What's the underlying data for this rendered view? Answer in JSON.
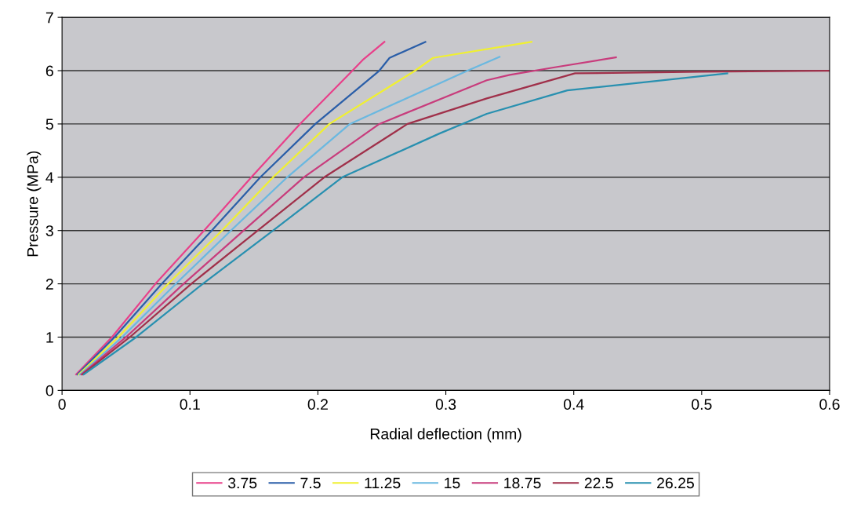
{
  "chart_data": {
    "type": "line",
    "xlabel": "Radial deflection (mm)",
    "ylabel": "Pressure (MPa)",
    "xlim": [
      0,
      0.6
    ],
    "xticks": [
      0,
      0.1,
      0.2,
      0.3,
      0.4,
      0.5,
      0.6
    ],
    "ylim": [
      0,
      7
    ],
    "yticks": [
      0,
      1,
      2,
      3,
      4,
      5,
      6,
      7
    ],
    "grid": "y",
    "legend": "bottom",
    "marker": "none",
    "line_style": "solid",
    "series": [
      {
        "name": "3.75",
        "color": "#e8408a",
        "x": [
          0.011,
          0.039,
          0.073,
          0.111,
          0.148,
          0.186,
          0.227,
          0.235,
          0.252
        ],
        "values": [
          0.3,
          1,
          2,
          3,
          4,
          5,
          6,
          6.2,
          6.54
        ]
      },
      {
        "name": "7.5",
        "color": "#2a5ea8",
        "x": [
          0.012,
          0.041,
          0.078,
          0.117,
          0.155,
          0.198,
          0.248,
          0.256,
          0.284
        ],
        "values": [
          0.3,
          1,
          2,
          3,
          4,
          5,
          6,
          6.24,
          6.54
        ]
      },
      {
        "name": "11.25",
        "color": "#f0f030",
        "x": [
          0.013,
          0.044,
          0.083,
          0.125,
          0.165,
          0.209,
          0.276,
          0.29,
          0.367
        ],
        "values": [
          0.3,
          1,
          2,
          3,
          4,
          5,
          6,
          6.24,
          6.54
        ]
      },
      {
        "name": "15",
        "color": "#6ab8e0",
        "x": [
          0.014,
          0.047,
          0.089,
          0.132,
          0.176,
          0.225,
          0.317,
          0.342
        ],
        "values": [
          0.3,
          1,
          2,
          3,
          4,
          5,
          6,
          6.26
        ]
      },
      {
        "name": "18.75",
        "color": "#c83c7c",
        "x": [
          0.015,
          0.05,
          0.095,
          0.142,
          0.189,
          0.248,
          0.332,
          0.35,
          0.387,
          0.433
        ],
        "values": [
          0.3,
          1,
          2,
          3,
          4,
          5,
          5.82,
          5.92,
          6.07,
          6.25
        ]
      },
      {
        "name": "22.5",
        "color": "#a0304a",
        "x": [
          0.016,
          0.053,
          0.101,
          0.153,
          0.205,
          0.27,
          0.332,
          0.401,
          0.5,
          0.6
        ],
        "values": [
          0.3,
          1,
          2,
          3,
          4,
          5,
          5.48,
          5.95,
          5.98,
          6.0
        ]
      },
      {
        "name": "26.25",
        "color": "#2890b0",
        "x": [
          0.017,
          0.058,
          0.11,
          0.165,
          0.219,
          0.295,
          0.332,
          0.395,
          0.52
        ],
        "values": [
          0.3,
          1,
          2,
          3,
          4,
          4.82,
          5.19,
          5.63,
          5.95
        ]
      }
    ]
  }
}
